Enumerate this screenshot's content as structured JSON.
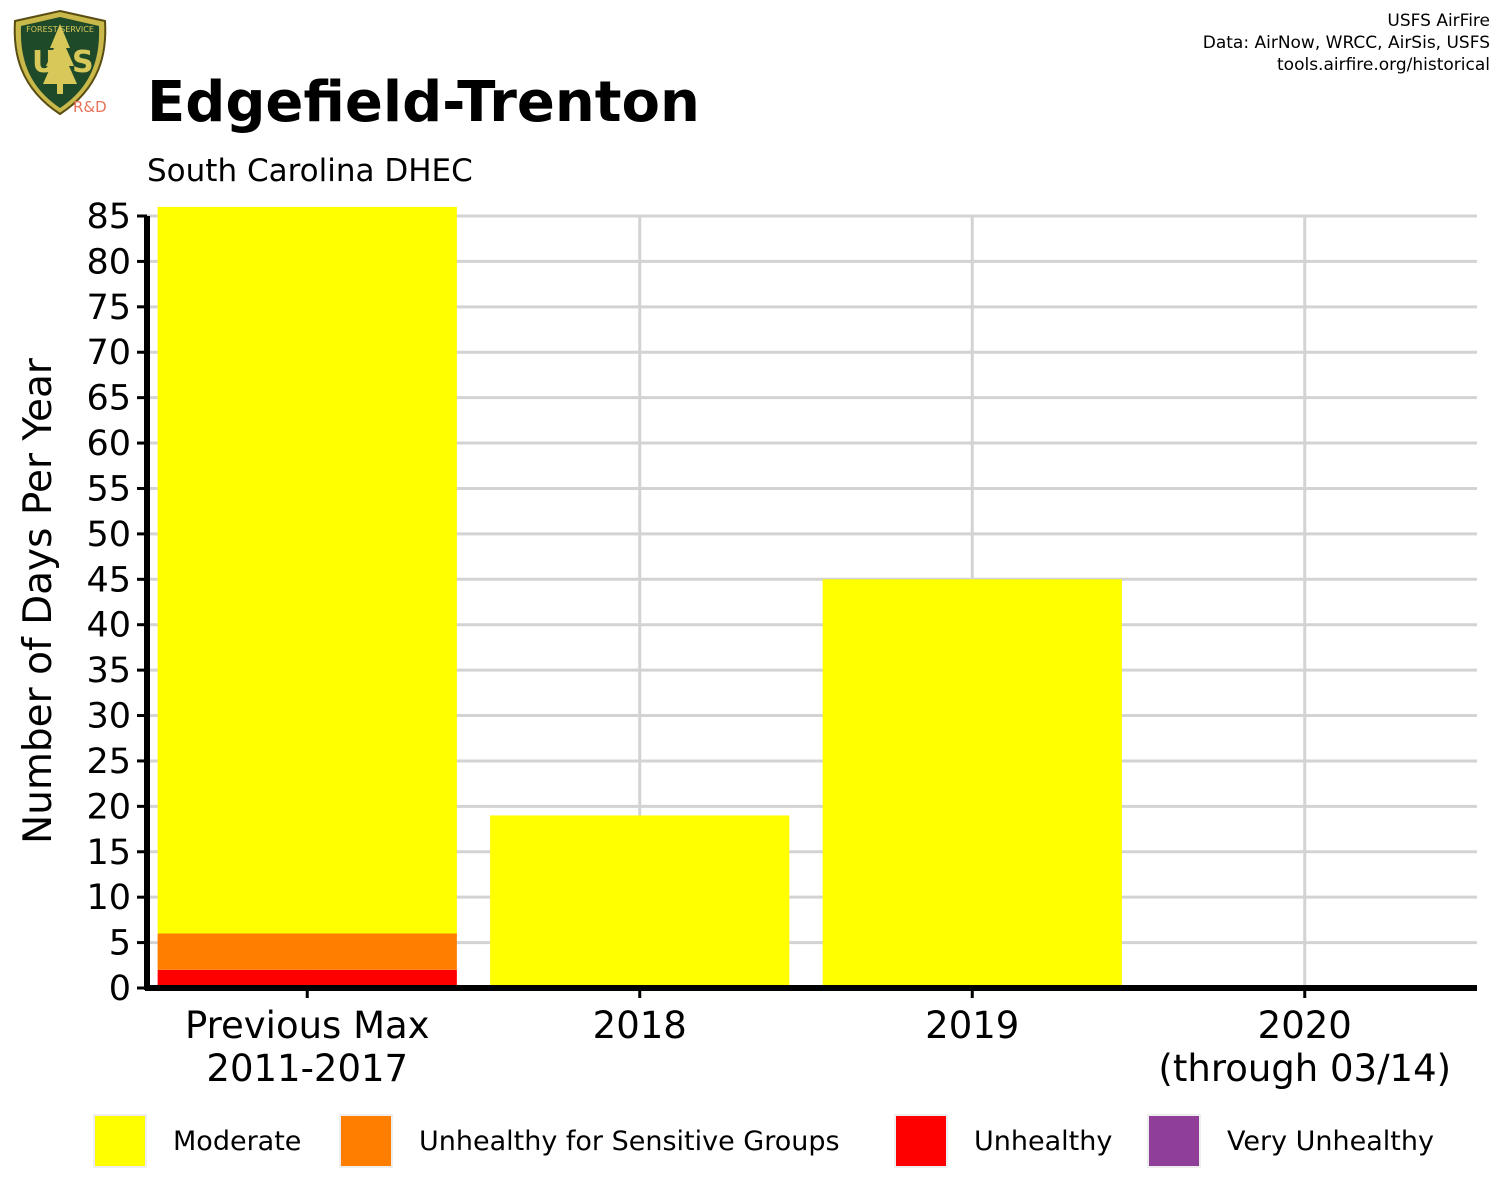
{
  "header": {
    "title": "Edgefield-Trenton",
    "subtitle": "South Carolina DHEC",
    "logo": {
      "top_text": "FOREST SERVICE",
      "letters": "US",
      "bottom_text": "DEPARTMENT OF AGRICULTURE",
      "tag": "R&D"
    },
    "credits": [
      "USFS AirFire",
      "Data: AirNow, WRCC, AirSis, USFS",
      "tools.airfire.org/historical"
    ]
  },
  "legend": [
    {
      "label": "Moderate",
      "color": "#ffff00"
    },
    {
      "label": "Unhealthy for Sensitive Groups",
      "color": "#ff7e00"
    },
    {
      "label": "Unhealthy",
      "color": "#ff0000"
    },
    {
      "label": "Very Unhealthy",
      "color": "#8f3f97"
    }
  ],
  "chart_data": {
    "type": "bar",
    "stacked": true,
    "title": "Edgefield-Trenton",
    "subtitle": "South Carolina DHEC",
    "ylabel": "Number of Days Per Year",
    "xlabel": "",
    "ylim": [
      0,
      85
    ],
    "yticks": [
      0,
      5,
      10,
      15,
      20,
      25,
      30,
      35,
      40,
      45,
      50,
      55,
      60,
      65,
      70,
      75,
      80,
      85
    ],
    "grid": true,
    "legend_position": "bottom",
    "categories": [
      [
        "Previous Max",
        "2011-2017"
      ],
      [
        "2018"
      ],
      [
        "2019"
      ],
      [
        "2020",
        "(through 03/14)"
      ]
    ],
    "series": [
      {
        "name": "Unhealthy",
        "color": "#ff0000",
        "values": [
          2,
          0,
          0,
          0
        ]
      },
      {
        "name": "Unhealthy for Sensitive Groups",
        "color": "#ff7e00",
        "values": [
          4,
          0,
          0,
          0
        ]
      },
      {
        "name": "Moderate",
        "color": "#ffff00",
        "values": [
          80,
          19,
          45,
          0
        ]
      },
      {
        "name": "Very Unhealthy",
        "color": "#8f3f97",
        "values": [
          0,
          0,
          0,
          0
        ]
      }
    ]
  }
}
